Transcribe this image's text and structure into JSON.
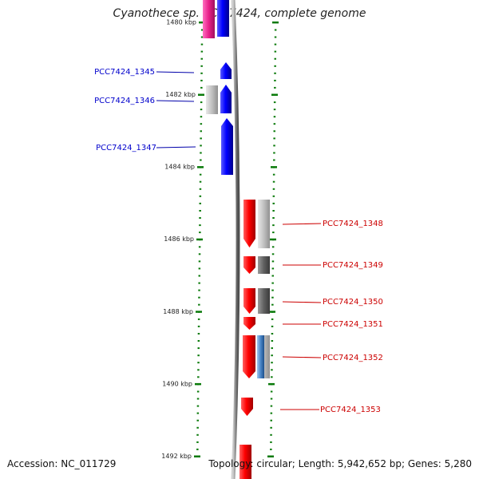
{
  "title": "Cyanothece sp. PCC 7424, complete genome",
  "footer": {
    "accession": "Accession: NC_011729",
    "summary": "Topology: circular; Length: 5,942,652 bp; Genes: 5,280"
  },
  "colors": {
    "forward_gene": "#0000ff",
    "reverse_gene": "#ff0000",
    "tick": "#0a7a0a",
    "backbone": "#7a7a7a",
    "top_feature": "#e8208a"
  },
  "ticks": [
    {
      "label": "1480 kbp",
      "kbp": 1480
    },
    {
      "label": "1482 kbp",
      "kbp": 1482
    },
    {
      "label": "1484 kbp",
      "kbp": 1484
    },
    {
      "label": "1486 kbp",
      "kbp": 1486
    },
    {
      "label": "1488 kbp",
      "kbp": 1488
    },
    {
      "label": "1490 kbp",
      "kbp": 1490
    },
    {
      "label": "1492 kbp",
      "kbp": 1492
    }
  ],
  "genes": [
    {
      "name": "PCC7424_1345",
      "strand": "forward"
    },
    {
      "name": "PCC7424_1346",
      "strand": "forward"
    },
    {
      "name": "PCC7424_1347",
      "strand": "forward"
    },
    {
      "name": "PCC7424_1348",
      "strand": "reverse"
    },
    {
      "name": "PCC7424_1349",
      "strand": "reverse"
    },
    {
      "name": "PCC7424_1350",
      "strand": "reverse"
    },
    {
      "name": "PCC7424_1351",
      "strand": "reverse"
    },
    {
      "name": "PCC7424_1352",
      "strand": "reverse"
    },
    {
      "name": "PCC7424_1353",
      "strand": "reverse"
    }
  ]
}
